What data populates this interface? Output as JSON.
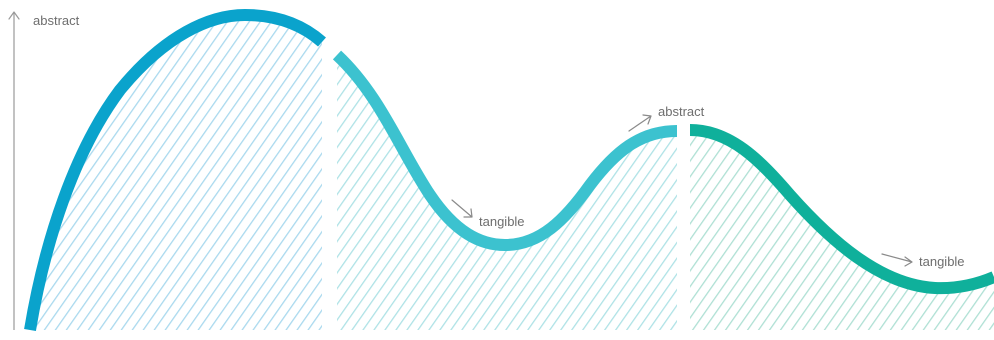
{
  "axis": {
    "label": "abstract"
  },
  "segments": [
    {
      "color": "#0aa3cc",
      "hatch_color": "#a9d9ee"
    },
    {
      "color": "#3cc2cf",
      "hatch_color": "#aee2e6"
    },
    {
      "color": "#0fb09b",
      "hatch_color": "#aee0d4"
    }
  ],
  "annotations": {
    "tangible_1": "tangible",
    "abstract_2": "abstract",
    "tangible_2": "tangible"
  }
}
